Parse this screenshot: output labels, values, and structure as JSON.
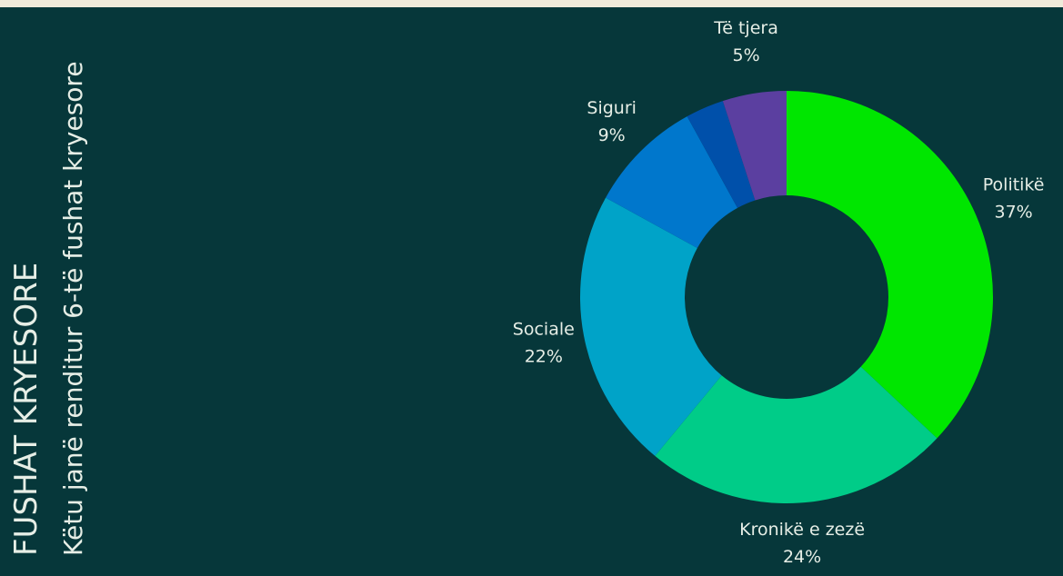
{
  "chart_data": {
    "type": "donut",
    "title": "FUSHAT KRYESORE",
    "subtitle": "Këtu janë renditur 6-të fushat kryesore",
    "categories": [
      "Politikë",
      "Kronikë e zezë",
      "Sociale",
      "Siguri",
      null,
      "Të tjera"
    ],
    "values": [
      37,
      24,
      22,
      9,
      3,
      5
    ],
    "value_labels": [
      "37%",
      "24%",
      "22%",
      "9%",
      null,
      "5%"
    ],
    "colors": [
      "#00e600",
      "#00cc88",
      "#00a3c8",
      "#0077cc",
      "#0050aa",
      "#5b3fa0"
    ]
  }
}
